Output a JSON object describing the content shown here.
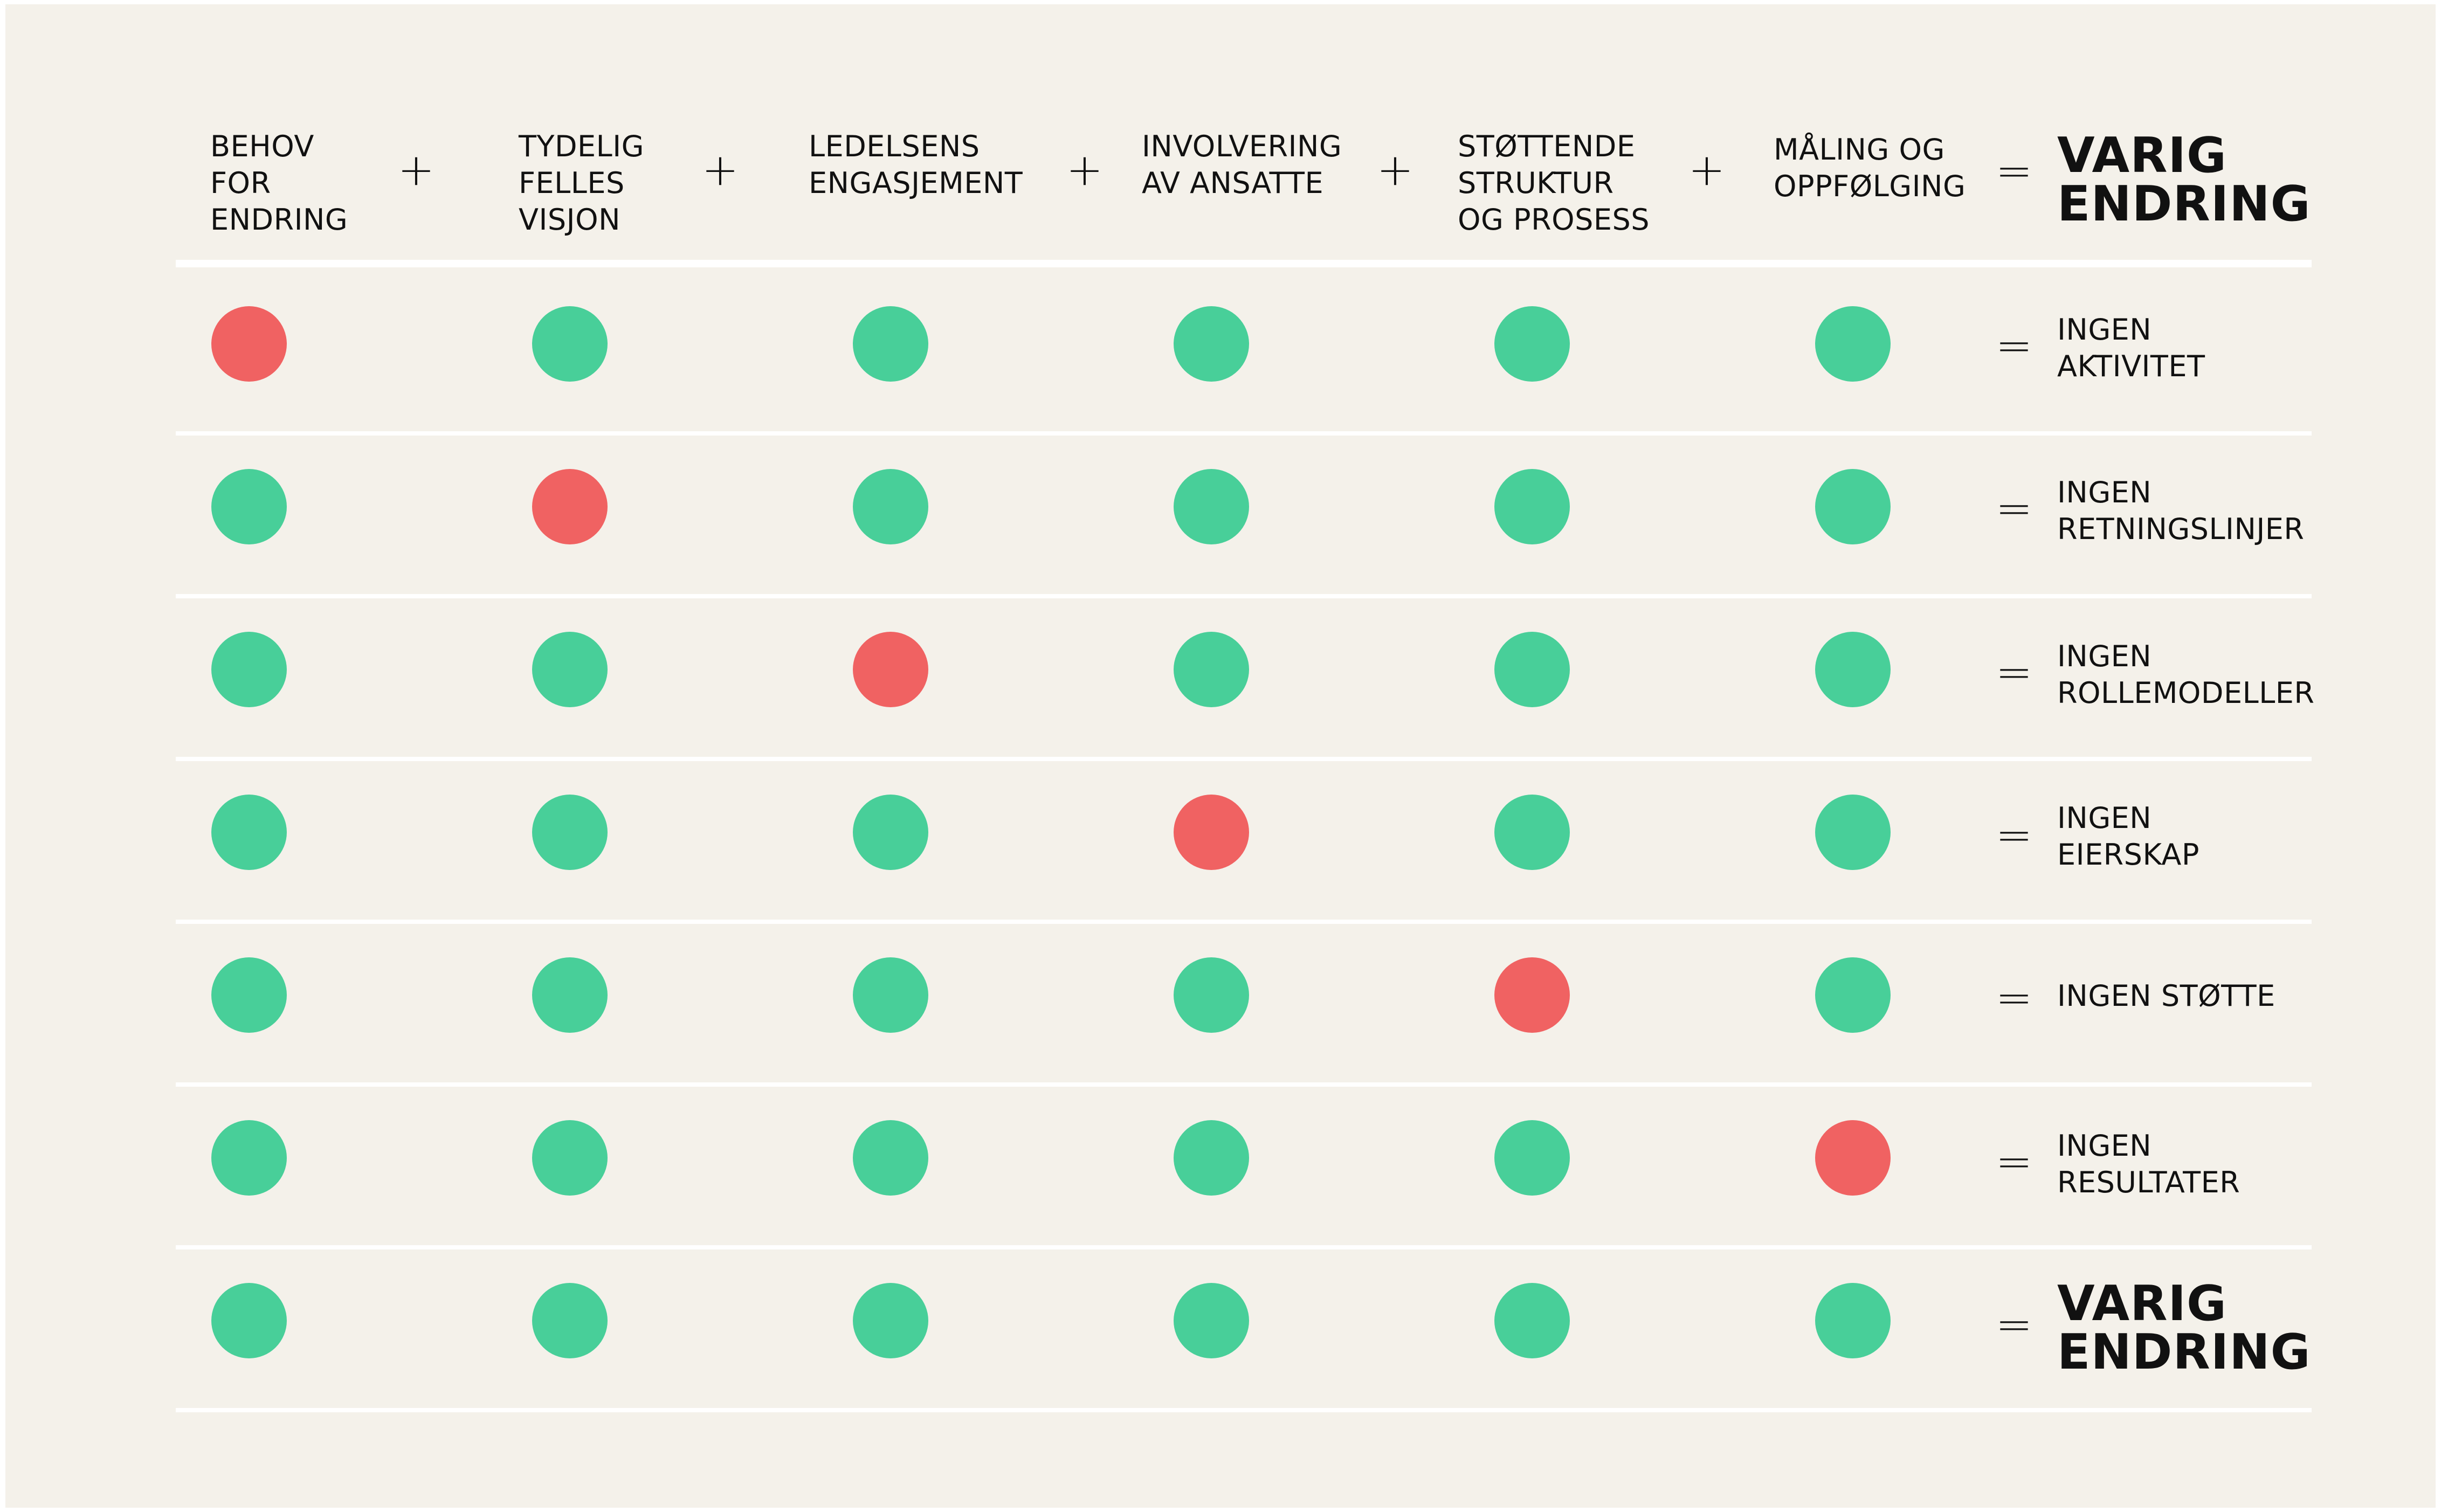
{
  "columns": [
    {
      "lines": [
        "BEHOV",
        "FOR",
        "ENDRING"
      ]
    },
    {
      "lines": [
        "TYDELIG",
        "FELLES",
        "VISJON"
      ]
    },
    {
      "lines": [
        "LEDELSENS",
        "ENGASJEMENT"
      ]
    },
    {
      "lines": [
        "INVOLVERING",
        "AV ANSATTE"
      ]
    },
    {
      "lines": [
        "STØTTENDE",
        "STRUKTUR",
        "OG PROSESS"
      ]
    },
    {
      "lines": [
        "MÅLING OG",
        "OPPFØLGING"
      ]
    }
  ],
  "operators": {
    "plus": "+",
    "equals": "="
  },
  "header_result": {
    "lines": [
      "VARIG",
      "ENDRING"
    ]
  },
  "colors": {
    "present": "#48cf99",
    "missing": "#f06262",
    "background": "#f4f1ea"
  },
  "rows": [
    {
      "missing_index": 0,
      "result": [
        "INGEN",
        "AKTIVITET"
      ],
      "emphasis": false
    },
    {
      "missing_index": 1,
      "result": [
        "INGEN",
        "RETNINGSLINJER"
      ],
      "emphasis": false
    },
    {
      "missing_index": 2,
      "result": [
        "INGEN",
        "ROLLEMODELLER"
      ],
      "emphasis": false
    },
    {
      "missing_index": 3,
      "result": [
        "INGEN",
        "EIERSKAP"
      ],
      "emphasis": false
    },
    {
      "missing_index": 4,
      "result": [
        "INGEN STØTTE"
      ],
      "emphasis": false
    },
    {
      "missing_index": 5,
      "result": [
        "INGEN",
        "RESULTATER"
      ],
      "emphasis": false
    },
    {
      "missing_index": -1,
      "result": [
        "VARIG",
        "ENDRING"
      ],
      "emphasis": true
    }
  ]
}
